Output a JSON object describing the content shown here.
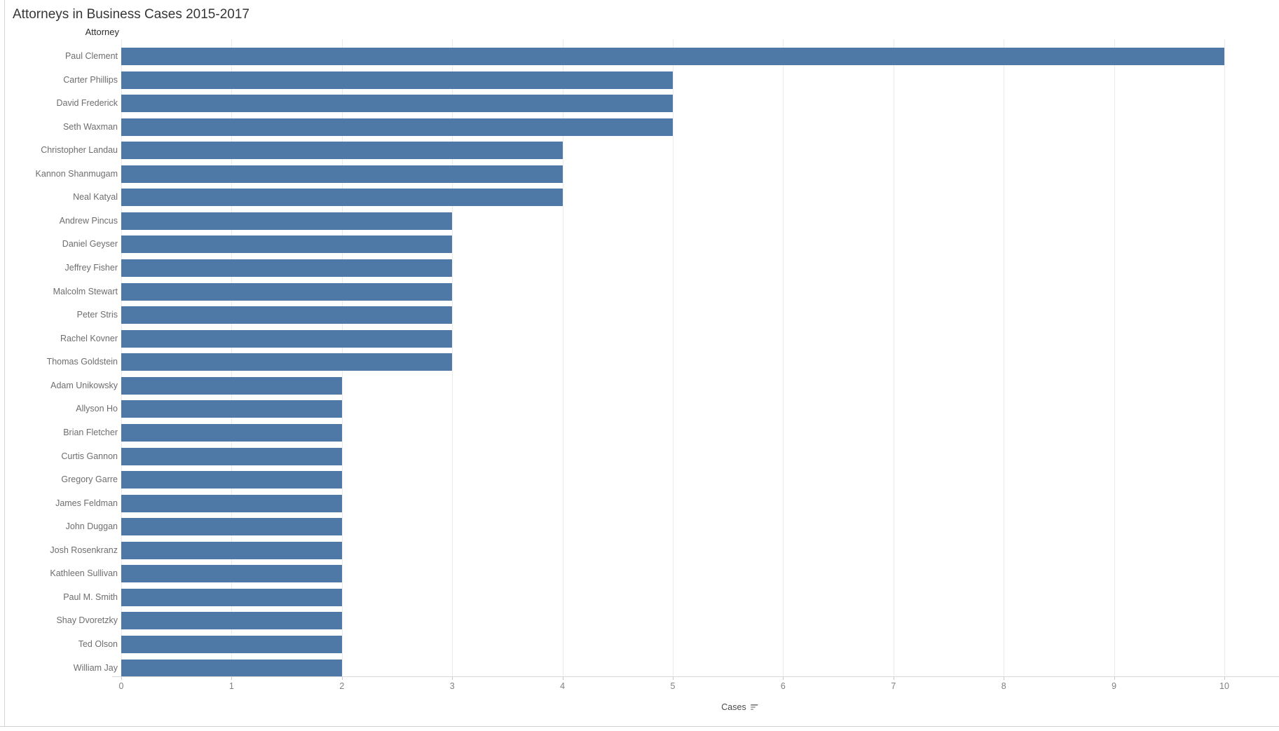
{
  "chart_data": {
    "type": "bar",
    "orientation": "horizontal",
    "title": "Attorneys in Business Cases 2015-2017",
    "row_field_label": "Attorney",
    "categories": [
      "Paul Clement",
      "Carter Phillips",
      "David Frederick",
      "Seth Waxman",
      "Christopher Landau",
      "Kannon Shanmugam",
      "Neal Katyal",
      "Andrew Pincus",
      "Daniel Geyser",
      "Jeffrey Fisher",
      "Malcolm Stewart",
      "Peter Stris",
      "Rachel Kovner",
      "Thomas Goldstein",
      "Adam Unikowsky",
      "Allyson Ho",
      "Brian Fletcher",
      "Curtis Gannon",
      "Gregory Garre",
      "James Feldman",
      "John Duggan",
      "Josh Rosenkranz",
      "Kathleen Sullivan",
      "Paul M. Smith",
      "Shay Dvoretzky",
      "Ted Olson",
      "William Jay"
    ],
    "values": [
      10,
      5,
      5,
      5,
      4,
      4,
      4,
      3,
      3,
      3,
      3,
      3,
      3,
      3,
      2,
      2,
      2,
      2,
      2,
      2,
      2,
      2,
      2,
      2,
      2,
      2,
      2
    ],
    "xlabel": "Cases",
    "xlim": [
      0,
      10
    ],
    "x_ticks": [
      0,
      1,
      2,
      3,
      4,
      5,
      6,
      7,
      8,
      9,
      10
    ],
    "grid": "vertical-gridlines-on",
    "legend": "none",
    "sort": "descending-by-value"
  },
  "colors": {
    "bar": "#4e79a7",
    "title_text": "#363636",
    "header_text": "#2b2b2b",
    "row_label_text": "#6e6e6e",
    "tick_text": "#808080",
    "gridline": "#ebebeb",
    "axis_line": "#d7d7d7",
    "frame_border": "#d6d6d6"
  },
  "icons": {
    "sort": "sort-descending-icon"
  }
}
